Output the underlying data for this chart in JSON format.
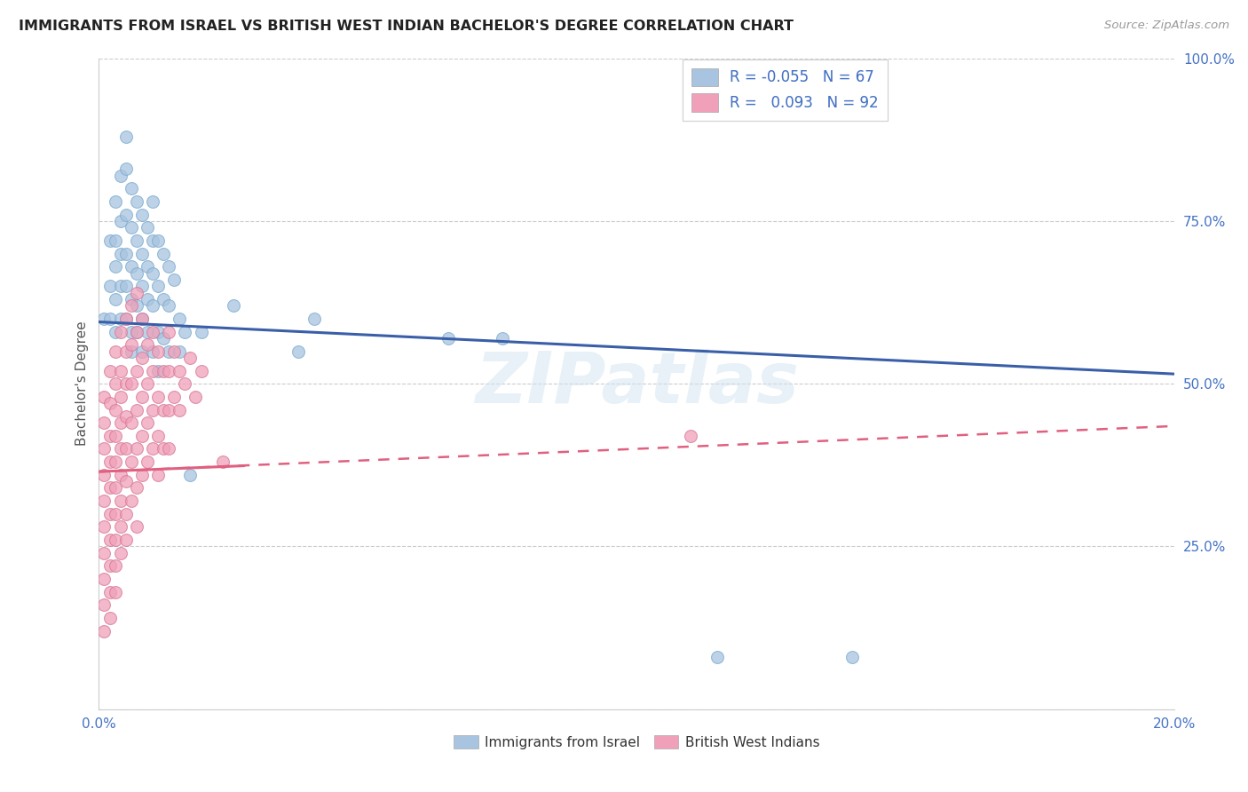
{
  "title": "IMMIGRANTS FROM ISRAEL VS BRITISH WEST INDIAN BACHELOR'S DEGREE CORRELATION CHART",
  "source": "Source: ZipAtlas.com",
  "ylabel": "Bachelor's Degree",
  "x_min": 0.0,
  "x_max": 0.2,
  "y_min": 0.0,
  "y_max": 1.0,
  "x_ticks": [
    0.0,
    0.05,
    0.1,
    0.15,
    0.2
  ],
  "y_ticks": [
    0.0,
    0.25,
    0.5,
    0.75,
    1.0
  ],
  "color_israel": "#a8c4e0",
  "color_bwi": "#f0a0b8",
  "color_israel_line": "#3a5fa8",
  "color_bwi_line": "#e06080",
  "color_axis_labels": "#4472c4",
  "watermark": "ZIPatlas",
  "israel_line_x": [
    0.0,
    0.2
  ],
  "israel_line_y": [
    0.595,
    0.515
  ],
  "bwi_line_x": [
    0.0,
    0.2
  ],
  "bwi_line_y": [
    0.365,
    0.435
  ],
  "israel_points": [
    [
      0.001,
      0.6
    ],
    [
      0.002,
      0.72
    ],
    [
      0.002,
      0.65
    ],
    [
      0.002,
      0.6
    ],
    [
      0.003,
      0.78
    ],
    [
      0.003,
      0.72
    ],
    [
      0.003,
      0.68
    ],
    [
      0.003,
      0.63
    ],
    [
      0.003,
      0.58
    ],
    [
      0.004,
      0.82
    ],
    [
      0.004,
      0.75
    ],
    [
      0.004,
      0.7
    ],
    [
      0.004,
      0.65
    ],
    [
      0.004,
      0.6
    ],
    [
      0.005,
      0.88
    ],
    [
      0.005,
      0.83
    ],
    [
      0.005,
      0.76
    ],
    [
      0.005,
      0.7
    ],
    [
      0.005,
      0.65
    ],
    [
      0.005,
      0.6
    ],
    [
      0.006,
      0.8
    ],
    [
      0.006,
      0.74
    ],
    [
      0.006,
      0.68
    ],
    [
      0.006,
      0.63
    ],
    [
      0.006,
      0.58
    ],
    [
      0.006,
      0.55
    ],
    [
      0.007,
      0.78
    ],
    [
      0.007,
      0.72
    ],
    [
      0.007,
      0.67
    ],
    [
      0.007,
      0.62
    ],
    [
      0.007,
      0.58
    ],
    [
      0.008,
      0.76
    ],
    [
      0.008,
      0.7
    ],
    [
      0.008,
      0.65
    ],
    [
      0.008,
      0.6
    ],
    [
      0.008,
      0.55
    ],
    [
      0.009,
      0.74
    ],
    [
      0.009,
      0.68
    ],
    [
      0.009,
      0.63
    ],
    [
      0.009,
      0.58
    ],
    [
      0.01,
      0.78
    ],
    [
      0.01,
      0.72
    ],
    [
      0.01,
      0.67
    ],
    [
      0.01,
      0.62
    ],
    [
      0.01,
      0.55
    ],
    [
      0.011,
      0.72
    ],
    [
      0.011,
      0.65
    ],
    [
      0.011,
      0.58
    ],
    [
      0.011,
      0.52
    ],
    [
      0.012,
      0.7
    ],
    [
      0.012,
      0.63
    ],
    [
      0.012,
      0.57
    ],
    [
      0.013,
      0.68
    ],
    [
      0.013,
      0.62
    ],
    [
      0.013,
      0.55
    ],
    [
      0.014,
      0.66
    ],
    [
      0.015,
      0.6
    ],
    [
      0.015,
      0.55
    ],
    [
      0.016,
      0.58
    ],
    [
      0.017,
      0.36
    ],
    [
      0.019,
      0.58
    ],
    [
      0.025,
      0.62
    ],
    [
      0.037,
      0.55
    ],
    [
      0.04,
      0.6
    ],
    [
      0.065,
      0.57
    ],
    [
      0.075,
      0.57
    ],
    [
      0.115,
      0.08
    ],
    [
      0.14,
      0.08
    ]
  ],
  "bwi_points": [
    [
      0.001,
      0.48
    ],
    [
      0.001,
      0.44
    ],
    [
      0.001,
      0.4
    ],
    [
      0.001,
      0.36
    ],
    [
      0.001,
      0.32
    ],
    [
      0.001,
      0.28
    ],
    [
      0.001,
      0.24
    ],
    [
      0.001,
      0.2
    ],
    [
      0.001,
      0.16
    ],
    [
      0.001,
      0.12
    ],
    [
      0.002,
      0.52
    ],
    [
      0.002,
      0.47
    ],
    [
      0.002,
      0.42
    ],
    [
      0.002,
      0.38
    ],
    [
      0.002,
      0.34
    ],
    [
      0.002,
      0.3
    ],
    [
      0.002,
      0.26
    ],
    [
      0.002,
      0.22
    ],
    [
      0.002,
      0.18
    ],
    [
      0.002,
      0.14
    ],
    [
      0.003,
      0.55
    ],
    [
      0.003,
      0.5
    ],
    [
      0.003,
      0.46
    ],
    [
      0.003,
      0.42
    ],
    [
      0.003,
      0.38
    ],
    [
      0.003,
      0.34
    ],
    [
      0.003,
      0.3
    ],
    [
      0.003,
      0.26
    ],
    [
      0.003,
      0.22
    ],
    [
      0.003,
      0.18
    ],
    [
      0.004,
      0.58
    ],
    [
      0.004,
      0.52
    ],
    [
      0.004,
      0.48
    ],
    [
      0.004,
      0.44
    ],
    [
      0.004,
      0.4
    ],
    [
      0.004,
      0.36
    ],
    [
      0.004,
      0.32
    ],
    [
      0.004,
      0.28
    ],
    [
      0.004,
      0.24
    ],
    [
      0.005,
      0.6
    ],
    [
      0.005,
      0.55
    ],
    [
      0.005,
      0.5
    ],
    [
      0.005,
      0.45
    ],
    [
      0.005,
      0.4
    ],
    [
      0.005,
      0.35
    ],
    [
      0.005,
      0.3
    ],
    [
      0.005,
      0.26
    ],
    [
      0.006,
      0.62
    ],
    [
      0.006,
      0.56
    ],
    [
      0.006,
      0.5
    ],
    [
      0.006,
      0.44
    ],
    [
      0.006,
      0.38
    ],
    [
      0.006,
      0.32
    ],
    [
      0.007,
      0.64
    ],
    [
      0.007,
      0.58
    ],
    [
      0.007,
      0.52
    ],
    [
      0.007,
      0.46
    ],
    [
      0.007,
      0.4
    ],
    [
      0.007,
      0.34
    ],
    [
      0.007,
      0.28
    ],
    [
      0.008,
      0.6
    ],
    [
      0.008,
      0.54
    ],
    [
      0.008,
      0.48
    ],
    [
      0.008,
      0.42
    ],
    [
      0.008,
      0.36
    ],
    [
      0.009,
      0.56
    ],
    [
      0.009,
      0.5
    ],
    [
      0.009,
      0.44
    ],
    [
      0.009,
      0.38
    ],
    [
      0.01,
      0.58
    ],
    [
      0.01,
      0.52
    ],
    [
      0.01,
      0.46
    ],
    [
      0.01,
      0.4
    ],
    [
      0.011,
      0.55
    ],
    [
      0.011,
      0.48
    ],
    [
      0.011,
      0.42
    ],
    [
      0.011,
      0.36
    ],
    [
      0.012,
      0.52
    ],
    [
      0.012,
      0.46
    ],
    [
      0.012,
      0.4
    ],
    [
      0.013,
      0.58
    ],
    [
      0.013,
      0.52
    ],
    [
      0.013,
      0.46
    ],
    [
      0.013,
      0.4
    ],
    [
      0.014,
      0.55
    ],
    [
      0.014,
      0.48
    ],
    [
      0.015,
      0.52
    ],
    [
      0.015,
      0.46
    ],
    [
      0.016,
      0.5
    ],
    [
      0.017,
      0.54
    ],
    [
      0.018,
      0.48
    ],
    [
      0.019,
      0.52
    ],
    [
      0.023,
      0.38
    ],
    [
      0.11,
      0.42
    ]
  ]
}
